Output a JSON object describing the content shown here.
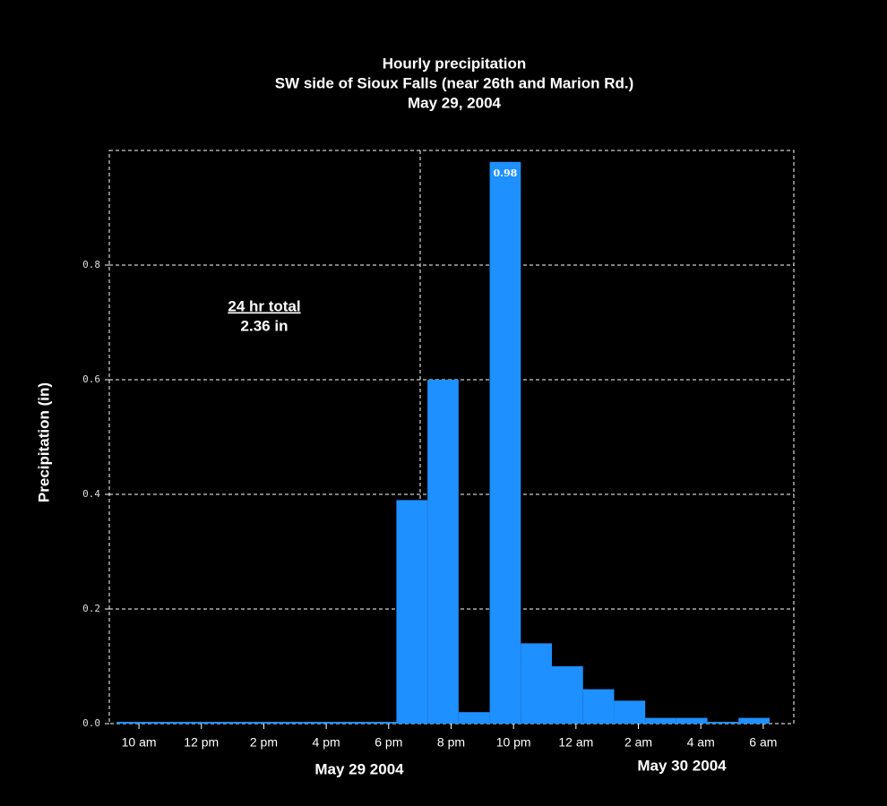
{
  "chart_data": {
    "type": "bar",
    "title": "Hourly precipitation",
    "subtitle": "SW side of Sioux Falls (near 26th and Marion Rd.)",
    "date": "May 29, 2004",
    "y_label": "Precipitation (in)",
    "annotations": [
      "24 hr total",
      "2.36 in"
    ],
    "date_labels": [
      "May 29 2004",
      "May 30 2004"
    ],
    "categories": [
      null,
      null,
      null,
      null,
      null,
      null,
      null,
      null,
      null,
      null,
      null,
      null,
      null,
      null,
      null,
      null,
      null,
      null,
      null,
      null,
      null
    ],
    "values": [
      0,
      0,
      0,
      0,
      0,
      0,
      0,
      0,
      0,
      0.39,
      0.6,
      0.02,
      0.98,
      0.14,
      0.1,
      0.06,
      0.04,
      0.01,
      0.01,
      0,
      0.01
    ],
    "color": "#1e90ff",
    "ylim": [
      0,
      1
    ],
    "yticks": [
      {
        "value": 0,
        "label": "0.0"
      },
      0.2,
      0.4,
      0.6,
      0.8
    ],
    "xlim": [
      -0.95,
      20.98
    ],
    "xticks": [
      {
        "value": 0,
        "label": "10 am"
      },
      {
        "value": 2,
        "label": "12 pm"
      },
      {
        "value": 4,
        "label": "2 pm"
      },
      {
        "value": 6,
        "label": "4 pm"
      },
      {
        "value": 8,
        "label": "6 pm"
      },
      {
        "value": 10,
        "label": "8 pm"
      },
      {
        "value": 12,
        "label": "10 pm"
      },
      {
        "value": 14,
        "label": "12 am"
      },
      {
        "value": 16,
        "label": "2 am"
      },
      {
        "value": 18,
        "label": "4 am"
      },
      {
        "value": 20,
        "label": "6 am"
      }
    ],
    "grid": true
  }
}
